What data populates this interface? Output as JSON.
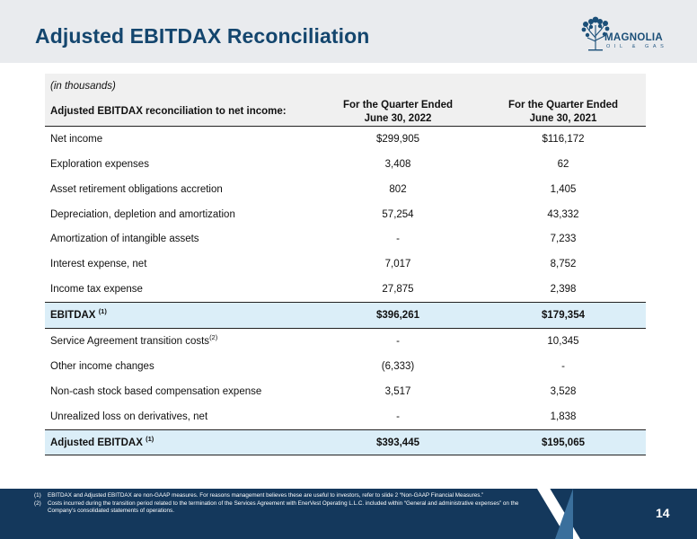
{
  "header": {
    "title": "Adjusted EBITDAX Reconciliation"
  },
  "logo": {
    "name": "MAGNOLIA",
    "sub": "OIL & GAS",
    "icon": "tree-icon"
  },
  "table": {
    "note": "(in thousands)",
    "label_header": "Adjusted EBITDAX reconciliation to net income:",
    "col1": {
      "line1": "For the Quarter Ended",
      "line2": "June 30, 2022"
    },
    "col2": {
      "line1": "For the Quarter Ended",
      "line2": "June 30, 2021"
    },
    "rows": [
      {
        "label": "Net income",
        "v1": "$299,905",
        "v2": "$116,172"
      },
      {
        "label": "Exploration expenses",
        "v1": "3,408",
        "v2": "62"
      },
      {
        "label": "Asset retirement obligations accretion",
        "v1": "802",
        "v2": "1,405"
      },
      {
        "label": "Depreciation, depletion and amortization",
        "v1": "57,254",
        "v2": "43,332"
      },
      {
        "label": "Amortization of intangible assets",
        "v1": "-",
        "v2": "7,233"
      },
      {
        "label": "Interest expense, net",
        "v1": "7,017",
        "v2": "8,752"
      },
      {
        "label": "Income tax expense",
        "v1": "27,875",
        "v2": "2,398"
      },
      {
        "label": "EBITDAX",
        "sup": "(1)",
        "v1": "$396,261",
        "v2": "$179,354"
      },
      {
        "label": "Service Agreement transition costs",
        "sup": "(2)",
        "v1": "-",
        "v2": "10,345"
      },
      {
        "label": "Other income changes",
        "v1": "(6,333)",
        "v2": "-"
      },
      {
        "label": "Non-cash stock based compensation expense",
        "v1": "3,517",
        "v2": "3,528"
      },
      {
        "label": "Unrealized loss on derivatives, net",
        "v1": "-",
        "v2": "1,838"
      },
      {
        "label": "Adjusted EBITDAX",
        "sup": "(1)",
        "v1": "$393,445",
        "v2": "$195,065"
      }
    ]
  },
  "footer": {
    "notes": [
      {
        "num": "(1)",
        "text": "EBITDAX and Adjusted EBITDAX are non-GAAP measures. For reasons management believes these are useful to investors, refer to slide 2 “Non-GAAP Financial Measures.”"
      },
      {
        "num": "(2)",
        "text": "Costs incurred during the transition period related to the termination of the Services Agreement with EnerVest Operating L.L.C. included within “General and administrative expenses” on the Company’s consolidated statements of operations."
      }
    ],
    "page_number": "14"
  }
}
